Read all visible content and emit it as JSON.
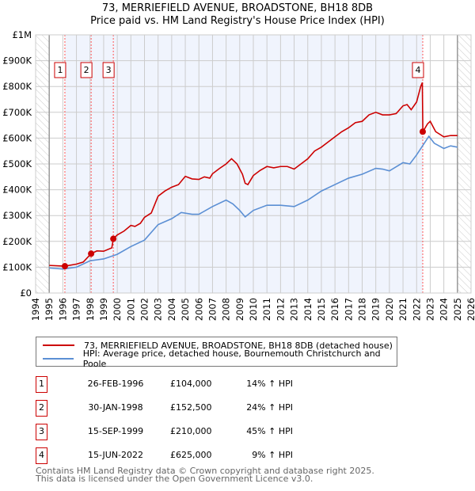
{
  "title": "73, MERRIEFIELD AVENUE, BROADSTONE, BH18 8DB",
  "subtitle": "Price paid vs. HM Land Registry's House Price Index (HPI)",
  "chart_data": {
    "type": "line",
    "title": "73, MERRIEFIELD AVENUE, BROADSTONE, BH18 8DB",
    "subtitle": "Price paid vs. HM Land Registry's House Price Index (HPI)",
    "xlim": [
      1994,
      2026
    ],
    "ylim": [
      0,
      1000000
    ],
    "xticks": [
      "1994",
      "1995",
      "1996",
      "1997",
      "1998",
      "1999",
      "2000",
      "2001",
      "2002",
      "2003",
      "2004",
      "2005",
      "2006",
      "2007",
      "2008",
      "2009",
      "2010",
      "2011",
      "2012",
      "2013",
      "2014",
      "2015",
      "2016",
      "2017",
      "2018",
      "2019",
      "2020",
      "2021",
      "2022",
      "2023",
      "2024",
      "2025",
      "2026"
    ],
    "yticks": [
      {
        "v": 0,
        "label": "£0"
      },
      {
        "v": 100000,
        "label": "£100K"
      },
      {
        "v": 200000,
        "label": "£200K"
      },
      {
        "v": 300000,
        "label": "£300K"
      },
      {
        "v": 400000,
        "label": "£400K"
      },
      {
        "v": 500000,
        "label": "£500K"
      },
      {
        "v": 600000,
        "label": "£600K"
      },
      {
        "v": 700000,
        "label": "£700K"
      },
      {
        "v": 800000,
        "label": "£800K"
      },
      {
        "v": 900000,
        "label": "£900K"
      },
      {
        "v": 1000000,
        "label": "£1M"
      }
    ],
    "grid": true,
    "data_range": [
      1995,
      2025
    ],
    "shaded_range": [
      1996.15,
      2022.45
    ],
    "series": [
      {
        "name": "73, MERRIEFIELD AVENUE, BROADSTONE, BH18 8DB (detached house)",
        "color": "#cc0000",
        "x": [
          1995,
          1996.15,
          1997,
          1997.5,
          1998.08,
          1998.5,
          1999,
          1999.6,
          1999.71,
          2000,
          2000.5,
          2001,
          2001.3,
          2001.7,
          2002,
          2002.5,
          2003,
          2003.5,
          2004,
          2004.5,
          2005,
          2005.5,
          2006,
          2006.4,
          2006.8,
          2007,
          2007.5,
          2008,
          2008.4,
          2008.8,
          2009.2,
          2009.4,
          2009.6,
          2010,
          2010.5,
          2011,
          2011.5,
          2012,
          2012.5,
          2013,
          2013.5,
          2014,
          2014.5,
          2015,
          2015.5,
          2016,
          2016.5,
          2017,
          2017.5,
          2018,
          2018.5,
          2019,
          2019.5,
          2020,
          2020.5,
          2021,
          2021.3,
          2021.6,
          2022,
          2022.3,
          2022.42,
          2022.46,
          2022.8,
          2023,
          2023.4,
          2024,
          2024.5,
          2025
        ],
        "y": [
          107000,
          104000,
          112000,
          120000,
          152500,
          163000,
          162000,
          175000,
          210000,
          225000,
          240000,
          262000,
          258000,
          270000,
          293000,
          310000,
          375000,
          395000,
          410000,
          420000,
          452000,
          442000,
          440000,
          450000,
          445000,
          462000,
          482000,
          500000,
          520000,
          500000,
          460000,
          425000,
          420000,
          455000,
          475000,
          490000,
          485000,
          490000,
          490000,
          480000,
          500000,
          520000,
          550000,
          565000,
          585000,
          605000,
          625000,
          640000,
          660000,
          665000,
          690000,
          700000,
          690000,
          690000,
          695000,
          725000,
          730000,
          710000,
          740000,
          800000,
          815000,
          625000,
          655000,
          665000,
          625000,
          605000,
          610000,
          610000
        ]
      },
      {
        "name": "HPI: Average price, detached house, Bournemouth Christchurch and Poole",
        "color": "#5b8fd4",
        "x": [
          1995,
          1996,
          1997,
          1998,
          1999,
          2000,
          2001,
          2002,
          2003,
          2004,
          2004.7,
          2005.5,
          2006,
          2007,
          2008,
          2008.5,
          2009,
          2009.4,
          2010,
          2011,
          2012,
          2013,
          2014,
          2015,
          2016,
          2017,
          2018,
          2019,
          2019.5,
          2020,
          2021,
          2021.5,
          2022,
          2022.5,
          2022.9,
          2023.3,
          2024,
          2024.5,
          2025
        ],
        "y": [
          97000,
          93000,
          100000,
          125000,
          132000,
          150000,
          180000,
          205000,
          265000,
          288000,
          312000,
          305000,
          305000,
          335000,
          360000,
          345000,
          320000,
          295000,
          320000,
          340000,
          340000,
          335000,
          360000,
          395000,
          420000,
          445000,
          460000,
          483000,
          480000,
          473000,
          505000,
          500000,
          535000,
          575000,
          607000,
          580000,
          560000,
          570000,
          565000
        ]
      }
    ],
    "sales": [
      {
        "n": "1",
        "x": 1996.15,
        "y": 104000,
        "date": "26-FEB-1996",
        "price": "£104,000",
        "hpi": "14% ↑ HPI"
      },
      {
        "n": "2",
        "x": 1998.08,
        "y": 152500,
        "date": "30-JAN-1998",
        "price": "£152,500",
        "hpi": "24% ↑ HPI"
      },
      {
        "n": "3",
        "x": 1999.71,
        "y": 210000,
        "date": "15-SEP-1999",
        "price": "£210,000",
        "hpi": "45% ↑ HPI"
      },
      {
        "n": "4",
        "x": 2022.45,
        "y": 625000,
        "date": "15-JUN-2022",
        "price": "£625,000",
        "hpi": "9% ↑ HPI"
      }
    ]
  },
  "legend": {
    "red": "73, MERRIEFIELD AVENUE, BROADSTONE, BH18 8DB (detached house)",
    "blue": "HPI: Average price, detached house, Bournemouth Christchurch and Poole"
  },
  "footer": {
    "line1": "Contains HM Land Registry data © Crown copyright and database right 2025.",
    "line2": "This data is licensed under the Open Government Licence v3.0."
  }
}
